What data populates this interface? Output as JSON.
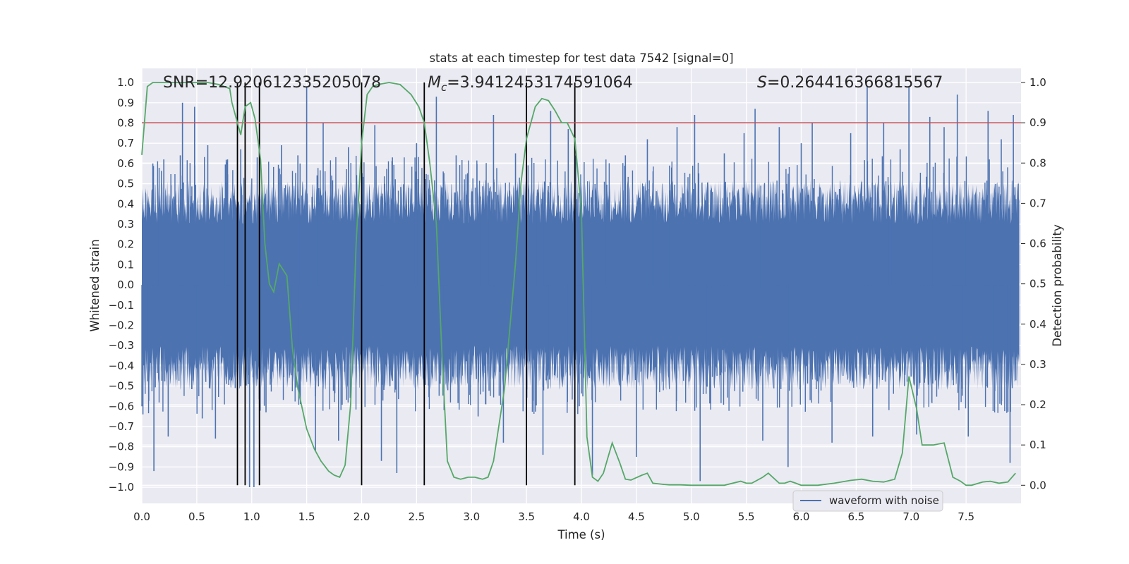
{
  "chart_data": {
    "type": "line",
    "title": "stats at each timestep for test data 7542 [signal=0]",
    "xlabel": "Time (s)",
    "ylabel_left": "Whitened strain",
    "ylabel_right": "Detection probability",
    "xlim": [
      0.0,
      8.0
    ],
    "ylim_left": [
      -1.08,
      1.07
    ],
    "ylim_right": [
      -0.045,
      1.035
    ],
    "x_ticks": [
      "0.0",
      "0.5",
      "1.0",
      "1.5",
      "2.0",
      "2.5",
      "3.0",
      "3.5",
      "4.0",
      "4.5",
      "5.0",
      "5.5",
      "6.0",
      "6.5",
      "7.0",
      "7.5"
    ],
    "y_left_ticks": [
      "1.0",
      "0.9",
      "0.8",
      "0.7",
      "0.6",
      "0.5",
      "0.4",
      "0.3",
      "0.2",
      "0.1",
      "0.0",
      "−0.1",
      "−0.2",
      "−0.3",
      "−0.4",
      "−0.5",
      "−0.6",
      "−0.7",
      "−0.8",
      "−0.9",
      "−1.0"
    ],
    "y_right_ticks": [
      "1.0",
      "0.9",
      "0.8",
      "0.7",
      "0.6",
      "0.5",
      "0.4",
      "0.3",
      "0.2",
      "0.1",
      "0.0"
    ],
    "annotations": {
      "snr": "SNR=12.920612335205078",
      "mc_symbol": "M",
      "mc_sub": "c",
      "mc_value": "=3.9412453174591064",
      "s_symbol": "S",
      "s_value": "=0.264416366815567"
    },
    "threshold": 0.9,
    "vertical_lines": [
      0.87,
      0.94,
      1.07,
      2.0,
      2.57,
      3.5,
      3.94
    ],
    "waveform_band": 0.4,
    "waveform_spikes": [
      [
        0.01,
        -0.64
      ],
      [
        0.1,
        0.6
      ],
      [
        0.11,
        -0.92
      ],
      [
        0.2,
        0.62
      ],
      [
        0.24,
        -0.75
      ],
      [
        0.35,
        0.64
      ],
      [
        0.37,
        0.9
      ],
      [
        0.48,
        0.88
      ],
      [
        0.55,
        -0.66
      ],
      [
        0.6,
        0.69
      ],
      [
        0.67,
        -0.76
      ],
      [
        0.78,
        0.62
      ],
      [
        0.85,
        -0.51
      ],
      [
        0.9,
        0.67
      ],
      [
        0.98,
        -1.0
      ],
      [
        1.02,
        -1.0
      ],
      [
        1.05,
        0.63
      ],
      [
        1.13,
        -0.63
      ],
      [
        1.27,
        0.69
      ],
      [
        1.42,
        0.64
      ],
      [
        1.5,
        0.98
      ],
      [
        1.58,
        -0.82
      ],
      [
        1.65,
        0.8
      ],
      [
        1.79,
        -0.77
      ],
      [
        1.88,
        0.68
      ],
      [
        2.12,
        0.79
      ],
      [
        2.18,
        -0.87
      ],
      [
        2.28,
        0.63
      ],
      [
        2.32,
        -0.93
      ],
      [
        2.5,
        0.7
      ],
      [
        2.68,
        0.93
      ],
      [
        2.86,
        0.64
      ],
      [
        3.06,
        -0.65
      ],
      [
        3.2,
        0.84
      ],
      [
        3.29,
        -0.78
      ],
      [
        3.4,
        0.65
      ],
      [
        3.65,
        -0.84
      ],
      [
        3.72,
        0.86
      ],
      [
        3.88,
        0.77
      ],
      [
        3.98,
        -0.6
      ],
      [
        4.1,
        -0.94
      ],
      [
        4.4,
        0.64
      ],
      [
        4.5,
        -0.85
      ],
      [
        4.6,
        0.72
      ],
      [
        4.82,
        0.58
      ],
      [
        4.87,
        0.78
      ],
      [
        5.03,
        0.84
      ],
      [
        5.08,
        -0.97
      ],
      [
        5.3,
        0.65
      ],
      [
        5.48,
        0.75
      ],
      [
        5.58,
        0.87
      ],
      [
        5.65,
        -0.77
      ],
      [
        5.8,
        0.78
      ],
      [
        5.88,
        -0.9
      ],
      [
        6.0,
        0.7
      ],
      [
        6.1,
        0.8
      ],
      [
        6.28,
        -0.78
      ],
      [
        6.45,
        0.75
      ],
      [
        6.6,
        0.98
      ],
      [
        6.65,
        -0.75
      ],
      [
        6.75,
        0.8
      ],
      [
        6.9,
        0.67
      ],
      [
        6.98,
        0.98
      ],
      [
        7.05,
        -0.74
      ],
      [
        7.17,
        0.83
      ],
      [
        7.3,
        0.78
      ],
      [
        7.42,
        0.94
      ],
      [
        7.52,
        -0.75
      ],
      [
        7.7,
        0.86
      ],
      [
        7.82,
        0.72
      ],
      [
        7.9,
        -0.88
      ],
      [
        7.93,
        0.84
      ]
    ],
    "probability_series": {
      "name": "detection probability",
      "color": "#55a868",
      "x": [
        0.0,
        0.05,
        0.1,
        0.2,
        0.3,
        0.5,
        0.6,
        0.7,
        0.8,
        0.82,
        0.86,
        0.9,
        0.94,
        0.99,
        1.03,
        1.08,
        1.12,
        1.16,
        1.2,
        1.25,
        1.32,
        1.37,
        1.42,
        1.5,
        1.57,
        1.63,
        1.7,
        1.75,
        1.8,
        1.85,
        1.9,
        1.95,
        2.0,
        2.05,
        2.1,
        2.15,
        2.25,
        2.35,
        2.45,
        2.52,
        2.57,
        2.62,
        2.68,
        2.73,
        2.78,
        2.84,
        2.9,
        2.97,
        3.03,
        3.1,
        3.15,
        3.2,
        3.3,
        3.4,
        3.45,
        3.5,
        3.58,
        3.64,
        3.7,
        3.76,
        3.82,
        3.87,
        3.94,
        4.0,
        4.05,
        4.1,
        4.15,
        4.2,
        4.28,
        4.35,
        4.4,
        4.45,
        4.55,
        4.6,
        4.65,
        4.75,
        4.8,
        4.9,
        5.0,
        5.1,
        5.3,
        5.45,
        5.5,
        5.55,
        5.65,
        5.7,
        5.8,
        5.85,
        5.9,
        5.95,
        6.0,
        6.05,
        6.1,
        6.15,
        6.3,
        6.45,
        6.55,
        6.65,
        6.75,
        6.85,
        6.92,
        6.98,
        7.05,
        7.1,
        7.2,
        7.3,
        7.38,
        7.45,
        7.5,
        7.55,
        7.65,
        7.72,
        7.8,
        7.88,
        7.95
      ],
      "values": [
        0.82,
        0.99,
        1.0,
        1.0,
        1.0,
        1.0,
        1.0,
        0.995,
        0.985,
        0.95,
        0.91,
        0.87,
        0.94,
        0.95,
        0.91,
        0.81,
        0.6,
        0.5,
        0.48,
        0.55,
        0.52,
        0.34,
        0.24,
        0.14,
        0.09,
        0.06,
        0.035,
        0.025,
        0.02,
        0.05,
        0.2,
        0.6,
        0.85,
        0.97,
        0.99,
        0.995,
        1.0,
        0.995,
        0.97,
        0.94,
        0.9,
        0.8,
        0.65,
        0.33,
        0.06,
        0.02,
        0.015,
        0.02,
        0.02,
        0.015,
        0.02,
        0.06,
        0.24,
        0.55,
        0.75,
        0.86,
        0.94,
        0.96,
        0.955,
        0.93,
        0.9,
        0.9,
        0.86,
        0.68,
        0.12,
        0.02,
        0.01,
        0.03,
        0.105,
        0.055,
        0.015,
        0.013,
        0.025,
        0.03,
        0.005,
        0.002,
        0.001,
        0.001,
        0.0,
        0.0,
        0.0,
        0.01,
        0.005,
        0.005,
        0.02,
        0.03,
        0.005,
        0.005,
        0.01,
        0.005,
        0.0,
        0.0,
        0.0,
        0.0,
        0.005,
        0.012,
        0.015,
        0.01,
        0.008,
        0.015,
        0.08,
        0.27,
        0.19,
        0.1,
        0.1,
        0.105,
        0.02,
        0.01,
        0.0,
        0.0,
        0.008,
        0.01,
        0.005,
        0.008,
        0.03
      ]
    },
    "threshold_color": "#c44e52",
    "waveform_color": "#4c72b0",
    "vertical_line_color": "#000000",
    "legend": [
      {
        "label": "waveform with noise",
        "color": "#4c72b0"
      }
    ]
  }
}
